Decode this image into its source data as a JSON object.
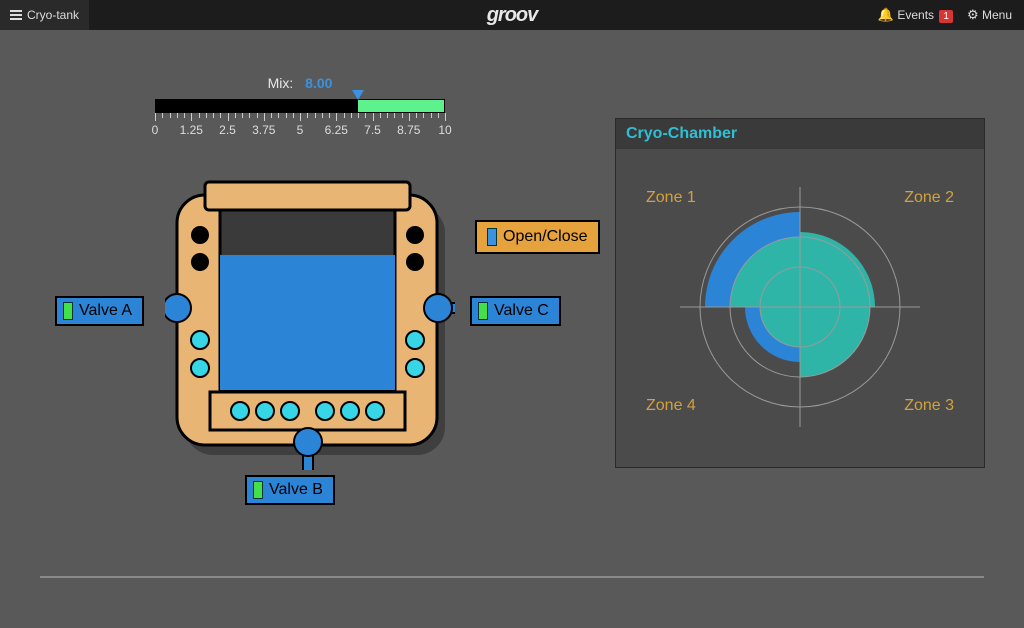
{
  "topbar": {
    "page_label": "Cryo-tank",
    "logo_text": "groov",
    "events_label": "Events",
    "events_count": 1,
    "menu_label": "Menu"
  },
  "mix": {
    "label": "Mix:",
    "value_text": "8.00",
    "value": 8.0,
    "min": 0,
    "max": 10,
    "fill_start": 7.0,
    "fill_end": 10.0,
    "marker_at": 7.0,
    "tick_labels": [
      "0",
      "1.25",
      "2.5",
      "3.75",
      "5",
      "6.25",
      "7.5",
      "8.75",
      "10"
    ],
    "track_color": "#000000",
    "fill_color": "#5ef28c",
    "marker_color": "#3a92e0"
  },
  "tank": {
    "body_color": "#e8b575",
    "outline_color": "#000000",
    "water_color": "#2c84d6",
    "inner_dark": "#3a3a3a",
    "valve_pipe_color": "#2c84d6",
    "hole_color": "#000000",
    "cyan_hole_color": "#36d6e6",
    "shadow_color": "#3f3f3f"
  },
  "valves": {
    "a_label": "Valve A",
    "b_label": "Valve B",
    "c_label": "Valve C",
    "led_on_color": "#44e04a",
    "button_color": "#2c84d6"
  },
  "open_close": {
    "label": "Open/Close",
    "button_color": "#e6a23c",
    "led_color": "#3a92e0"
  },
  "chamber": {
    "title": "Cryo-Chamber",
    "zones": [
      "Zone 1",
      "Zone 2",
      "Zone 3",
      "Zone 4"
    ],
    "zone_label_color": "#d1a23e",
    "axis_color": "#9a9a9a",
    "ring_radii": [
      40,
      70,
      100
    ],
    "series": [
      {
        "color": "#2c84d6",
        "values_by_zone": [
          0.95,
          0.55,
          0.45,
          0.55
        ]
      },
      {
        "color": "#2fb5a8",
        "values_by_zone": [
          0.7,
          0.75,
          0.7,
          0.4
        ]
      }
    ]
  }
}
